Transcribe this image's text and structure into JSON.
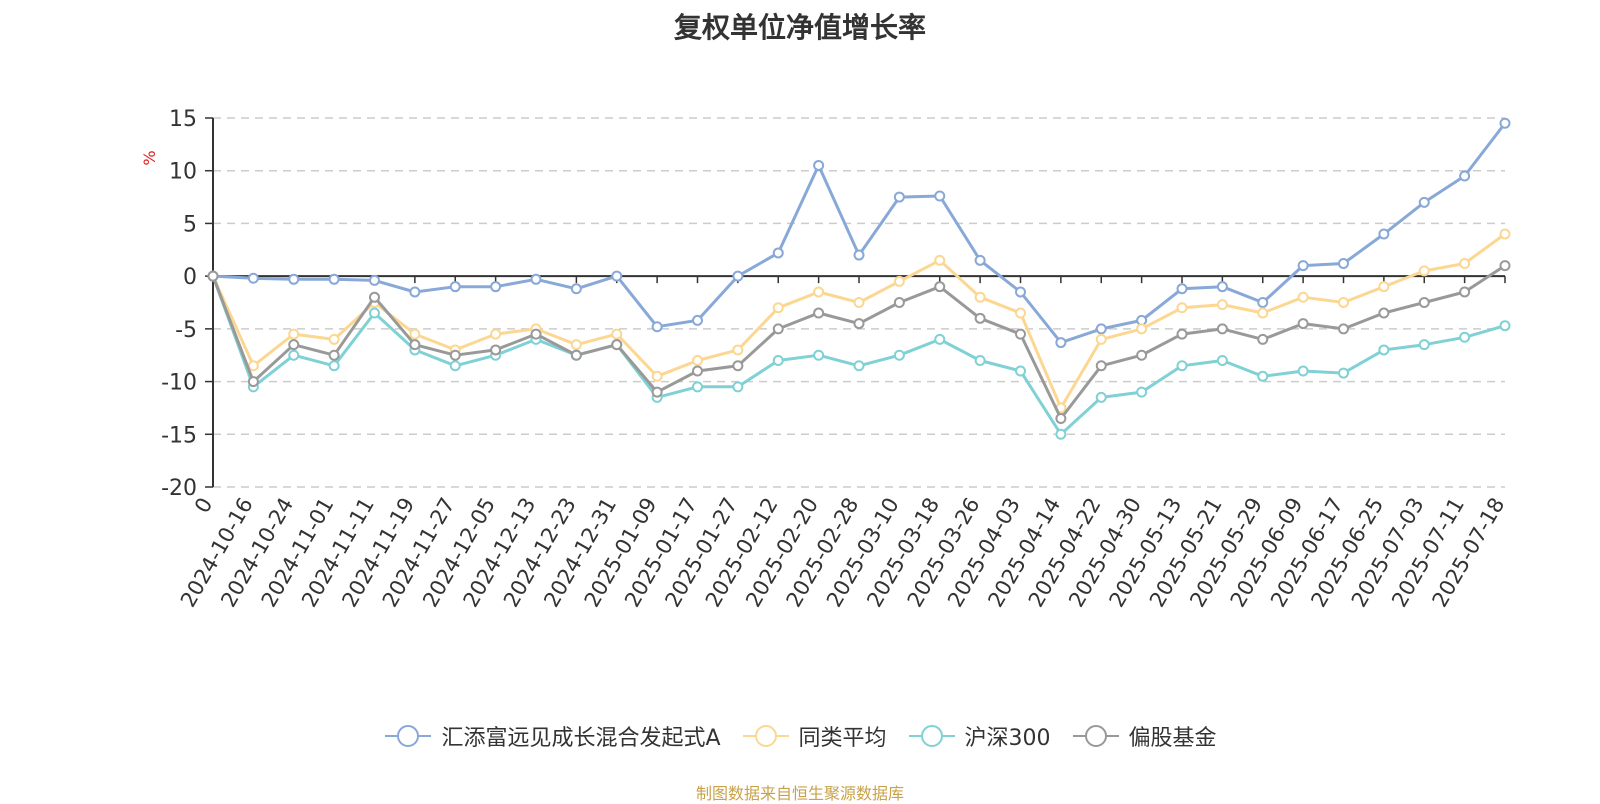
{
  "chart_data": {
    "type": "line",
    "title": "复权单位净值增长率",
    "ylabel": "%",
    "ylim": [
      -20,
      15
    ],
    "yticks": [
      15,
      10,
      5,
      0,
      -5,
      -10,
      -15,
      -20
    ],
    "x_tick_labels": [
      "0",
      "2024-10-16",
      "2024-10-24",
      "2024-11-01",
      "2024-11-11",
      "2024-11-19",
      "2024-11-27",
      "2024-12-05",
      "2024-12-13",
      "2024-12-23",
      "2024-12-31",
      "2025-01-09",
      "2025-01-17",
      "2025-01-27",
      "2025-02-12",
      "2025-02-20",
      "2025-02-28",
      "2025-03-10",
      "2025-03-18",
      "2025-03-26",
      "2025-04-03",
      "2025-04-14",
      "2025-04-22",
      "2025-04-30",
      "2025-05-13",
      "2025-05-21",
      "2025-05-29",
      "2025-06-09",
      "2025-06-17",
      "2025-06-25",
      "2025-07-03",
      "2025-07-11",
      "2025-07-18"
    ],
    "grid": true,
    "legend_position": "bottom",
    "series": [
      {
        "name": "汇添富远见成长混合发起式A",
        "color": "#88a8d8",
        "values": [
          0,
          -0.2,
          -0.3,
          -0.3,
          -0.4,
          -1.5,
          -1.0,
          -1.0,
          -0.3,
          -1.2,
          0,
          -4.8,
          -4.2,
          0,
          2.2,
          10.5,
          2.0,
          7.5,
          7.6,
          1.5,
          -1.5,
          -6.3,
          -5.0,
          -4.2,
          -1.2,
          -1.0,
          -2.5,
          1.0,
          1.2,
          4.0,
          7.0,
          9.5,
          14.5
        ]
      },
      {
        "name": "同类平均",
        "color": "#fcd792",
        "values": [
          0,
          -8.5,
          -5.5,
          -6.0,
          -2.5,
          -5.5,
          -7.0,
          -5.5,
          -5.0,
          -6.5,
          -5.5,
          -9.5,
          -8.0,
          -7.0,
          -3.0,
          -1.5,
          -2.5,
          -0.5,
          1.5,
          -2.0,
          -3.5,
          -12.5,
          -6.0,
          -5.0,
          -3.0,
          -2.7,
          -3.5,
          -2.0,
          -2.5,
          -1.0,
          0.5,
          1.2,
          4.0
        ]
      },
      {
        "name": "沪深300",
        "color": "#7fd1d5",
        "values": [
          0,
          -10.5,
          -7.5,
          -8.5,
          -3.5,
          -7.0,
          -8.5,
          -7.5,
          -6.0,
          -7.5,
          -6.5,
          -11.5,
          -10.5,
          -10.5,
          -8.0,
          -7.5,
          -8.5,
          -7.5,
          -6.0,
          -8.0,
          -9.0,
          -15.0,
          -11.5,
          -11.0,
          -8.5,
          -8.0,
          -9.5,
          -9.0,
          -9.2,
          -7.0,
          -6.5,
          -5.8,
          -4.7
        ]
      },
      {
        "name": "偏股基金",
        "color": "#999999",
        "values": [
          0,
          -10.0,
          -6.5,
          -7.5,
          -2.0,
          -6.5,
          -7.5,
          -7.0,
          -5.5,
          -7.5,
          -6.5,
          -11.0,
          -9.0,
          -8.5,
          -5.0,
          -3.5,
          -4.5,
          -2.5,
          -1.0,
          -4.0,
          -5.5,
          -13.5,
          -8.5,
          -7.5,
          -5.5,
          -5.0,
          -6.0,
          -4.5,
          -5.0,
          -3.5,
          -2.5,
          -1.5,
          1.0
        ]
      }
    ]
  },
  "source_note": "制图数据来自恒生聚源数据库"
}
